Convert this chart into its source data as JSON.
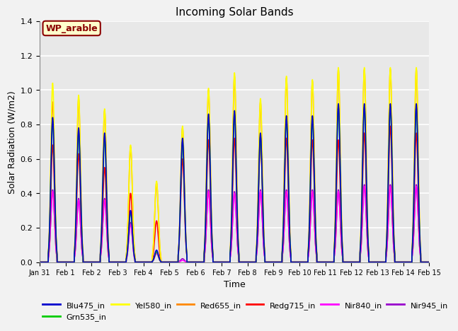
{
  "title": "Incoming Solar Bands",
  "xlabel": "Time",
  "ylabel": "Solar Radiation (W/m2)",
  "ylim": [
    0,
    1.4
  ],
  "n_days": 15,
  "fig_bg": "#f2f2f2",
  "plot_bg": "#e8e8e8",
  "annotation_label": "WP_arable",
  "annotation_color": "#8B0000",
  "annotation_bg": "#ffffcc",
  "bands": {
    "Blu475_in": {
      "color": "#0000cd",
      "lw": 1.2
    },
    "Grn535_in": {
      "color": "#00cc00",
      "lw": 1.2
    },
    "Yel580_in": {
      "color": "#ffff00",
      "lw": 1.2
    },
    "Red655_in": {
      "color": "#ff8800",
      "lw": 1.2
    },
    "Redg715_in": {
      "color": "#ff0000",
      "lw": 1.2
    },
    "Nir840_in": {
      "color": "#ff00ff",
      "lw": 1.2
    },
    "Nir945_in": {
      "color": "#9900cc",
      "lw": 1.2
    }
  },
  "tick_labels": [
    "Jan 31",
    "Feb 1",
    "Feb 2",
    "Feb 3",
    "Feb 4",
    "Feb 5",
    "Feb 6",
    "Feb 7",
    "Feb 8",
    "Feb 9",
    "Feb 10",
    "Feb 11",
    "Feb 12",
    "Feb 13",
    "Feb 14",
    "Feb 15"
  ],
  "peak_values": {
    "Yel580_in": [
      1.04,
      0.97,
      0.89,
      0.68,
      0.47,
      0.79,
      1.01,
      1.1,
      0.95,
      1.08,
      1.06,
      1.13,
      1.13,
      1.13,
      1.13
    ],
    "Red655_in": [
      0.93,
      0.95,
      0.88,
      0.67,
      0.46,
      0.78,
      1.0,
      1.08,
      0.93,
      1.07,
      1.05,
      1.12,
      1.12,
      1.12,
      1.12
    ],
    "Redg715_in": [
      0.68,
      0.63,
      0.55,
      0.4,
      0.24,
      0.6,
      0.71,
      0.72,
      0.71,
      0.72,
      0.71,
      0.71,
      0.75,
      0.79,
      0.75
    ],
    "Nir840_in": [
      0.41,
      0.36,
      0.36,
      0.22,
      0.05,
      0.01,
      0.41,
      0.4,
      0.41,
      0.41,
      0.41,
      0.41,
      0.44,
      0.44,
      0.44
    ],
    "Blu475_in": [
      0.84,
      0.78,
      0.75,
      0.3,
      0.07,
      0.72,
      0.86,
      0.88,
      0.75,
      0.85,
      0.85,
      0.92,
      0.92,
      0.92,
      0.92
    ],
    "Grn535_in": [
      0.82,
      0.75,
      0.72,
      0.29,
      0.06,
      0.7,
      0.84,
      0.86,
      0.73,
      0.83,
      0.83,
      0.9,
      0.9,
      0.9,
      0.9
    ],
    "Nir945_in": [
      0.42,
      0.37,
      0.37,
      0.23,
      0.06,
      0.02,
      0.42,
      0.41,
      0.42,
      0.42,
      0.42,
      0.42,
      0.45,
      0.45,
      0.45
    ]
  },
  "band_draw_order": [
    "Nir945_in",
    "Nir840_in",
    "Redg715_in",
    "Red655_in",
    "Yel580_in",
    "Grn535_in",
    "Blu475_in"
  ],
  "legend_order": [
    "Blu475_in",
    "Grn535_in",
    "Yel580_in",
    "Red655_in",
    "Redg715_in",
    "Nir840_in",
    "Nir945_in"
  ]
}
